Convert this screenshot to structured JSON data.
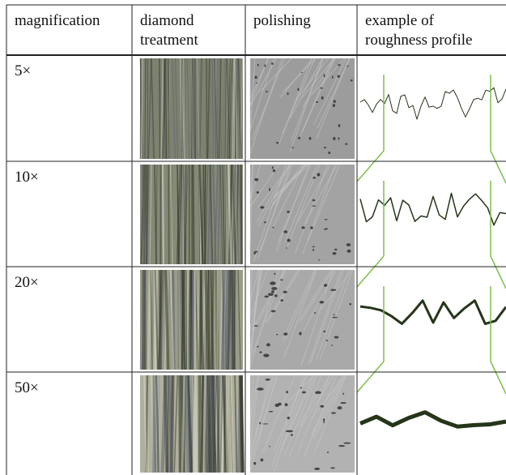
{
  "table": {
    "header": [
      [
        "magnification"
      ],
      [
        "diamond",
        "treatment"
      ],
      [
        "polishing"
      ],
      [
        "example of",
        "roughness profile"
      ]
    ],
    "rows": [
      "5×",
      "10×",
      "20×",
      "50×"
    ]
  }
}
